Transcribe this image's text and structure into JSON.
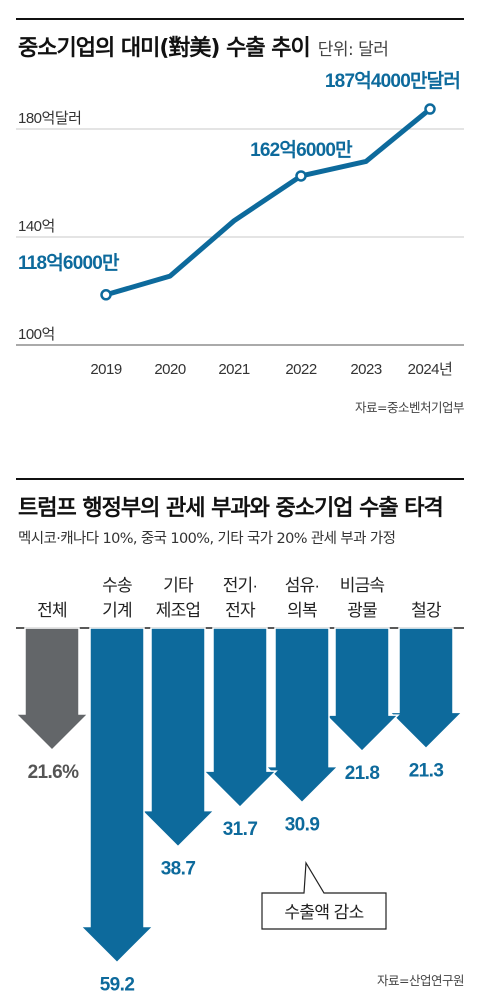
{
  "charts": [
    {
      "title": "중소기업의 대미(對美) 수출 추이",
      "unit_label": "단위: 달러",
      "source": "자료=중소벤처기업부"
    },
    {
      "title": "트럼프 행정부의 관세 부과와 중소기업 수출 타격",
      "subtitle": "멕시코·캐나다 10%, 중국 100%, 기타 국가 20% 관세 부과 가정",
      "callout": "수출액 감소",
      "source": "자료=산업연구원"
    }
  ],
  "chart_data": [
    {
      "type": "line",
      "title": "중소기업의 대미(對美) 수출 추이",
      "unit": "단위: 달러",
      "x": [
        "2019",
        "2020",
        "2021",
        "2022",
        "2023",
        "2024"
      ],
      "x_tick_labels": [
        "2019",
        "2020",
        "2021",
        "2022",
        "2023",
        "2024년"
      ],
      "values": [
        118.6,
        125.5,
        146.0,
        162.6,
        168.0,
        187.4
      ],
      "y_unit": "억달러",
      "ylim": [
        100,
        200
      ],
      "y_ticks": [
        100,
        140,
        180
      ],
      "y_tick_labels": [
        "100억",
        "140억",
        "180억달러"
      ],
      "grid": true,
      "annotations": [
        {
          "x": "2019",
          "text": "118억6000만"
        },
        {
          "x": "2022",
          "text": "162억6000만"
        },
        {
          "x": "2024",
          "text": "187억4000만달러"
        }
      ],
      "color": "#0d6a9c"
    },
    {
      "type": "bar",
      "orientation": "downward-arrows",
      "title": "트럼프 행정부의 관세 부과와 중소기업 수출 타격",
      "subtitle": "멕시코·캐나다 10%, 중국 100%, 기타 국가 20% 관세 부과 가정",
      "categories": [
        {
          "lines": [
            "전체"
          ]
        },
        {
          "lines": [
            "수송",
            "기계"
          ]
        },
        {
          "lines": [
            "기타",
            "제조업"
          ]
        },
        {
          "lines": [
            "전기·",
            "전자"
          ]
        },
        {
          "lines": [
            "섬유·",
            "의복"
          ]
        },
        {
          "lines": [
            "비금속",
            "광물"
          ]
        },
        {
          "lines": [
            "철강"
          ]
        }
      ],
      "values": [
        21.6,
        59.2,
        38.7,
        31.7,
        30.9,
        21.8,
        21.3
      ],
      "value_labels": [
        "21.6%",
        "59.2",
        "38.7",
        "31.7",
        "30.9",
        "21.8",
        "21.3"
      ],
      "value_unit": "%",
      "colors": {
        "total": "#636669",
        "sector": "#0d6a9c"
      },
      "callout": "수출액 감소"
    }
  ]
}
